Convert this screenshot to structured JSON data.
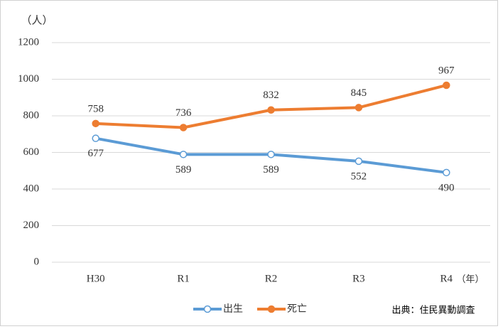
{
  "chart_data": {
    "type": "line",
    "y_unit": "（人）",
    "x_unit": "（年）",
    "source": "出典：住民異動調査",
    "categories": [
      "H30",
      "R1",
      "R2",
      "R3",
      "R4"
    ],
    "series": [
      {
        "name": "出生",
        "color": "#5b9bd5",
        "marker": "hollow",
        "label_position": "below",
        "values": [
          677,
          589,
          589,
          552,
          490
        ]
      },
      {
        "name": "死亡",
        "color": "#ed7d31",
        "marker": "filled",
        "label_position": "above",
        "values": [
          758,
          736,
          832,
          845,
          967
        ]
      }
    ],
    "ylim": [
      0,
      1200
    ],
    "yticks": [
      0,
      200,
      400,
      600,
      800,
      1000,
      1200
    ],
    "grid": true
  }
}
